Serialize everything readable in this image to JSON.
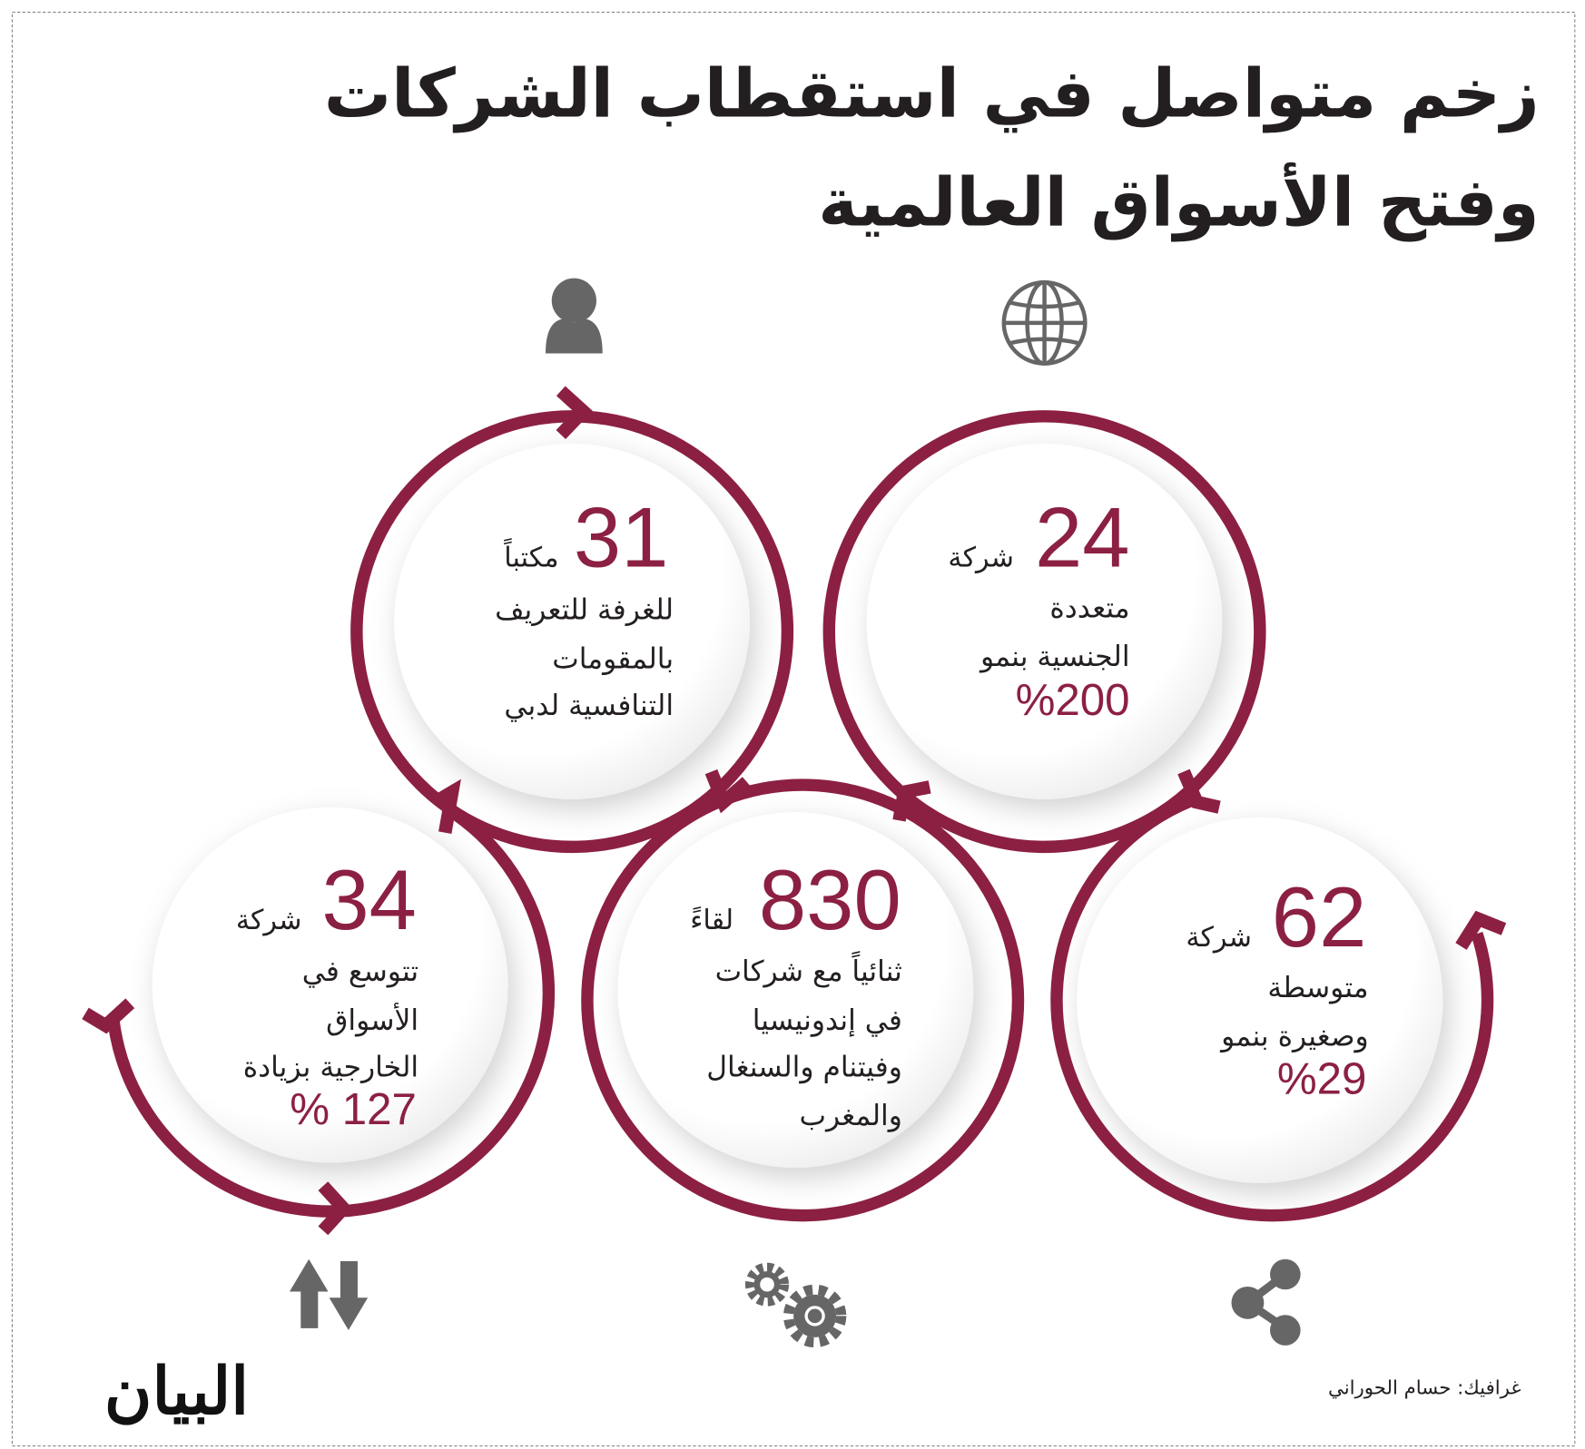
{
  "title": {
    "line1": "زخم متواصل في استقطاب الشركات",
    "line2": "وفتح الأسواق العالمية"
  },
  "colors": {
    "accent": "#8c2042",
    "text": "#231f20",
    "icon": "#666666"
  },
  "stats": [
    {
      "id": "offices",
      "number": "31",
      "unit": "مكتباً",
      "lines": [
        "للغرفة للتعريف",
        "بالمقومات",
        "التنافسية لدبي"
      ],
      "icon": "person-icon"
    },
    {
      "id": "multinational",
      "number": "24",
      "unit": "شركة",
      "lines": [
        "متعددة",
        "الجنسية بنمو"
      ],
      "percent": "%200",
      "icon": "globe-icon"
    },
    {
      "id": "expansion",
      "number": "34",
      "unit": "شركة",
      "lines": [
        "تتوسع في",
        "الأسواق",
        "الخارجية بزيادة"
      ],
      "percent": "% 127",
      "icon": "up-down-arrows-icon"
    },
    {
      "id": "meetings",
      "number": "830",
      "unit": "لقاءً",
      "lines": [
        "ثنائياً مع شركات",
        "في إندونيسيا",
        "وفيتنام والسنغال",
        "والمغرب"
      ],
      "icon": "gears-icon"
    },
    {
      "id": "sme",
      "number": "62",
      "unit": "شركة",
      "lines": [
        "متوسطة",
        "وصغيرة بنمو"
      ],
      "percent": "%29",
      "icon": "share-icon"
    }
  ],
  "footer": {
    "credit": "غرافيك: حسام الحوراني",
    "logo": "البيان"
  }
}
